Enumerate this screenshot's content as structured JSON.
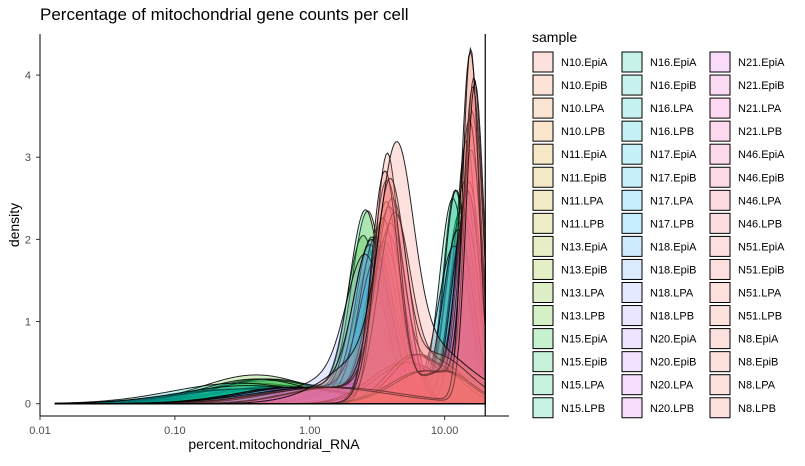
{
  "chart_data": {
    "type": "area",
    "title": "Percentage of mitochondrial gene counts per cell",
    "xlabel": "percent.mitochondrial_RNA",
    "ylabel": "density",
    "x_scale": "log10",
    "xlim": [
      0.01,
      30
    ],
    "ylim": [
      -0.15,
      4.5
    ],
    "x_ticks": [
      0.01,
      0.1,
      1,
      10
    ],
    "x_tick_labels": [
      "0.01",
      "0.10",
      "1.00",
      "10.00"
    ],
    "y_ticks": [
      0,
      1,
      2,
      3,
      4
    ],
    "y_tick_labels": [
      "0",
      "1",
      "2",
      "3",
      "4"
    ],
    "vline_x": 20,
    "legend": {
      "title": "sample",
      "placement": "right",
      "columns": 3,
      "entries": [
        {
          "name": "N10.EpiA",
          "color": "#F8766D"
        },
        {
          "name": "N10.EpiB",
          "color": "#F47D4F"
        },
        {
          "name": "N10.LPA",
          "color": "#EE8533"
        },
        {
          "name": "N10.LPB",
          "color": "#E58C1B"
        },
        {
          "name": "N11.EpiA",
          "color": "#DA9400"
        },
        {
          "name": "N11.EpiB",
          "color": "#CC9B00"
        },
        {
          "name": "N11.LPA",
          "color": "#BDA200"
        },
        {
          "name": "N11.LPB",
          "color": "#ACA800"
        },
        {
          "name": "N13.EpiA",
          "color": "#99AE00"
        },
        {
          "name": "N13.EpiB",
          "color": "#83B300"
        },
        {
          "name": "N13.LPA",
          "color": "#68B800"
        },
        {
          "name": "N13.LPB",
          "color": "#42BC00"
        },
        {
          "name": "N15.EpiA",
          "color": "#00BF26"
        },
        {
          "name": "N15.EpiB",
          "color": "#00C250"
        },
        {
          "name": "N15.LPA",
          "color": "#00C46C"
        },
        {
          "name": "N15.LPB",
          "color": "#00C585"
        },
        {
          "name": "N16.EpiA",
          "color": "#00C69B"
        },
        {
          "name": "N16.EpiB",
          "color": "#00C6AF"
        },
        {
          "name": "N16.LPA",
          "color": "#00C5C2"
        },
        {
          "name": "N16.LPB",
          "color": "#00C3D3"
        },
        {
          "name": "N17.EpiA",
          "color": "#00C0E2"
        },
        {
          "name": "N17.EpiB",
          "color": "#00BCEF"
        },
        {
          "name": "N17.LPA",
          "color": "#00B7FA"
        },
        {
          "name": "N17.LPB",
          "color": "#00B1FF"
        },
        {
          "name": "N18.EpiA",
          "color": "#26AAFF"
        },
        {
          "name": "N18.EpiB",
          "color": "#62A2FF"
        },
        {
          "name": "N18.LPA",
          "color": "#8599FF"
        },
        {
          "name": "N18.LPB",
          "color": "#A08FFF"
        },
        {
          "name": "N20.EpiA",
          "color": "#B584FF"
        },
        {
          "name": "N20.EpiB",
          "color": "#C77AFF"
        },
        {
          "name": "N20.LPA",
          "color": "#D56FFC"
        },
        {
          "name": "N20.LPB",
          "color": "#E165F2"
        },
        {
          "name": "N21.EpiA",
          "color": "#EA5DE6"
        },
        {
          "name": "N21.EpiB",
          "color": "#F156D8"
        },
        {
          "name": "N21.LPA",
          "color": "#F652C9"
        },
        {
          "name": "N21.LPB",
          "color": "#F951B8"
        },
        {
          "name": "N46.EpiA",
          "color": "#FB53A6"
        },
        {
          "name": "N46.EpiB",
          "color": "#FC5793"
        },
        {
          "name": "N46.LPA",
          "color": "#FB5D80"
        },
        {
          "name": "N46.LPB",
          "color": "#FA6476"
        },
        {
          "name": "N51.EpiA",
          "color": "#F96C72"
        },
        {
          "name": "N51.EpiB",
          "color": "#F8726E"
        },
        {
          "name": "N51.LPA",
          "color": "#F8766D"
        },
        {
          "name": "N51.LPB",
          "color": "#F8766D"
        },
        {
          "name": "N8.EpiA",
          "color": "#F8766D"
        },
        {
          "name": "N8.EpiB",
          "color": "#F8766D"
        },
        {
          "name": "N8.LPA",
          "color": "#F8766D"
        },
        {
          "name": "N8.LPB",
          "color": "#F8766D"
        }
      ]
    },
    "series": [
      {
        "name": "N10.EpiA",
        "peaks": [
          {
            "mu": 14.5,
            "sigma": 0.08,
            "h": 3.2
          },
          {
            "mu": 0.9,
            "sigma": 0.45,
            "h": 0.2
          }
        ]
      },
      {
        "name": "N10.EpiB",
        "peaks": [
          {
            "mu": 15.5,
            "sigma": 0.07,
            "h": 4.2
          },
          {
            "mu": 3.0,
            "sigma": 0.45,
            "h": 0.3
          }
        ]
      },
      {
        "name": "N10.LPA",
        "peaks": [
          {
            "mu": 3.7,
            "sigma": 0.1,
            "h": 2.4
          },
          {
            "mu": 0.8,
            "sigma": 0.5,
            "h": 0.15
          }
        ]
      },
      {
        "name": "N10.LPB",
        "peaks": [
          {
            "mu": 3.5,
            "sigma": 0.11,
            "h": 2.2
          },
          {
            "mu": 0.6,
            "sigma": 0.5,
            "h": 0.2
          }
        ]
      },
      {
        "name": "N11.EpiA",
        "peaks": [
          {
            "mu": 13.0,
            "sigma": 0.1,
            "h": 2.3
          },
          {
            "mu": 2.0,
            "sigma": 0.4,
            "h": 0.25
          }
        ]
      },
      {
        "name": "N11.EpiB",
        "peaks": [
          {
            "mu": 14.0,
            "sigma": 0.09,
            "h": 2.7
          },
          {
            "mu": 0.5,
            "sigma": 0.5,
            "h": 0.2
          }
        ]
      },
      {
        "name": "N11.LPA",
        "peaks": [
          {
            "mu": 3.4,
            "sigma": 0.12,
            "h": 1.9
          },
          {
            "mu": 0.4,
            "sigma": 0.45,
            "h": 0.25
          }
        ]
      },
      {
        "name": "N11.LPB",
        "peaks": [
          {
            "mu": 3.0,
            "sigma": 0.13,
            "h": 1.8
          },
          {
            "mu": 0.5,
            "sigma": 0.45,
            "h": 0.28
          }
        ]
      },
      {
        "name": "N13.EpiA",
        "peaks": [
          {
            "mu": 12.5,
            "sigma": 0.1,
            "h": 2.1
          },
          {
            "mu": 0.6,
            "sigma": 0.45,
            "h": 0.22
          }
        ]
      },
      {
        "name": "N13.EpiB",
        "peaks": [
          {
            "mu": 13.5,
            "sigma": 0.09,
            "h": 2.4
          },
          {
            "mu": 0.7,
            "sigma": 0.45,
            "h": 0.2
          }
        ]
      },
      {
        "name": "N13.LPA",
        "peaks": [
          {
            "mu": 2.7,
            "sigma": 0.12,
            "h": 2.3
          },
          {
            "mu": 0.45,
            "sigma": 0.4,
            "h": 0.3
          }
        ]
      },
      {
        "name": "N13.LPB",
        "peaks": [
          {
            "mu": 2.5,
            "sigma": 0.12,
            "h": 2.0
          },
          {
            "mu": 0.4,
            "sigma": 0.4,
            "h": 0.35
          }
        ]
      },
      {
        "name": "N15.EpiA",
        "peaks": [
          {
            "mu": 12.0,
            "sigma": 0.09,
            "h": 2.6
          },
          {
            "mu": 0.5,
            "sigma": 0.45,
            "h": 0.2
          }
        ]
      },
      {
        "name": "N15.EpiB",
        "peaks": [
          {
            "mu": 12.8,
            "sigma": 0.1,
            "h": 2.2
          },
          {
            "mu": 0.6,
            "sigma": 0.45,
            "h": 0.2
          }
        ]
      },
      {
        "name": "N15.LPA",
        "peaks": [
          {
            "mu": 2.6,
            "sigma": 0.12,
            "h": 2.3
          },
          {
            "mu": 0.5,
            "sigma": 0.4,
            "h": 0.3
          }
        ]
      },
      {
        "name": "N15.LPB",
        "peaks": [
          {
            "mu": 2.9,
            "sigma": 0.12,
            "h": 2.0
          },
          {
            "mu": 0.4,
            "sigma": 0.4,
            "h": 0.3
          }
        ]
      },
      {
        "name": "N16.EpiA",
        "peaks": [
          {
            "mu": 11.5,
            "sigma": 0.1,
            "h": 2.5
          },
          {
            "mu": 0.3,
            "sigma": 0.5,
            "h": 0.18
          }
        ]
      },
      {
        "name": "N16.EpiB",
        "peaks": [
          {
            "mu": 12.2,
            "sigma": 0.09,
            "h": 2.6
          },
          {
            "mu": 0.35,
            "sigma": 0.5,
            "h": 0.18
          }
        ]
      },
      {
        "name": "N16.LPA",
        "peaks": [
          {
            "mu": 2.8,
            "sigma": 0.13,
            "h": 1.9
          },
          {
            "mu": 0.3,
            "sigma": 0.5,
            "h": 0.25
          }
        ]
      },
      {
        "name": "N16.LPB",
        "peaks": [
          {
            "mu": 3.1,
            "sigma": 0.12,
            "h": 2.0
          },
          {
            "mu": 0.35,
            "sigma": 0.5,
            "h": 0.22
          }
        ]
      },
      {
        "name": "N17.EpiA",
        "peaks": [
          {
            "mu": 13.8,
            "sigma": 0.1,
            "h": 2.2
          },
          {
            "mu": 0.8,
            "sigma": 0.45,
            "h": 0.2
          }
        ]
      },
      {
        "name": "N17.EpiB",
        "peaks": [
          {
            "mu": 14.8,
            "sigma": 0.09,
            "h": 2.6
          },
          {
            "mu": 0.9,
            "sigma": 0.45,
            "h": 0.2
          }
        ]
      },
      {
        "name": "N17.LPA",
        "peaks": [
          {
            "mu": 3.2,
            "sigma": 0.13,
            "h": 1.7
          },
          {
            "mu": 1.2,
            "sigma": 0.4,
            "h": 0.2
          }
        ]
      },
      {
        "name": "N17.LPB",
        "peaks": [
          {
            "mu": 3.6,
            "sigma": 0.12,
            "h": 1.9
          },
          {
            "mu": 1.0,
            "sigma": 0.4,
            "h": 0.2
          }
        ]
      },
      {
        "name": "N18.EpiA",
        "peaks": [
          {
            "mu": 11.8,
            "sigma": 0.12,
            "h": 1.9
          },
          {
            "mu": 2.5,
            "sigma": 0.3,
            "h": 0.25
          }
        ]
      },
      {
        "name": "N18.EpiB",
        "peaks": [
          {
            "mu": 12.6,
            "sigma": 0.11,
            "h": 2.1
          },
          {
            "mu": 2.8,
            "sigma": 0.3,
            "h": 0.22
          }
        ]
      },
      {
        "name": "N18.LPA",
        "peaks": [
          {
            "mu": 2.6,
            "sigma": 0.14,
            "h": 1.6
          },
          {
            "mu": 1.5,
            "sigma": 0.3,
            "h": 0.3
          }
        ]
      },
      {
        "name": "N18.LPB",
        "peaks": [
          {
            "mu": 2.9,
            "sigma": 0.13,
            "h": 1.8
          },
          {
            "mu": 1.8,
            "sigma": 0.3,
            "h": 0.25
          }
        ]
      },
      {
        "name": "N20.EpiA",
        "peaks": [
          {
            "mu": 14.2,
            "sigma": 0.1,
            "h": 2.3
          },
          {
            "mu": 0.7,
            "sigma": 0.4,
            "h": 0.2
          }
        ]
      },
      {
        "name": "N20.EpiB",
        "peaks": [
          {
            "mu": 15.2,
            "sigma": 0.09,
            "h": 2.7
          },
          {
            "mu": 0.8,
            "sigma": 0.4,
            "h": 0.2
          }
        ]
      },
      {
        "name": "N20.LPA",
        "peaks": [
          {
            "mu": 3.8,
            "sigma": 0.12,
            "h": 2.0
          },
          {
            "mu": 1.1,
            "sigma": 0.4,
            "h": 0.2
          }
        ]
      },
      {
        "name": "N20.LPB",
        "peaks": [
          {
            "mu": 4.0,
            "sigma": 0.12,
            "h": 2.1
          },
          {
            "mu": 1.3,
            "sigma": 0.4,
            "h": 0.2
          }
        ]
      },
      {
        "name": "N21.EpiA",
        "peaks": [
          {
            "mu": 15.0,
            "sigma": 0.09,
            "h": 2.5
          },
          {
            "mu": 5.0,
            "sigma": 0.25,
            "h": 0.5
          }
        ]
      },
      {
        "name": "N21.EpiB",
        "peaks": [
          {
            "mu": 15.8,
            "sigma": 0.08,
            "h": 3.0
          },
          {
            "mu": 5.5,
            "sigma": 0.25,
            "h": 0.5
          }
        ]
      },
      {
        "name": "N21.LPA",
        "peaks": [
          {
            "mu": 3.9,
            "sigma": 0.12,
            "h": 2.3
          },
          {
            "mu": 1.5,
            "sigma": 0.35,
            "h": 0.2
          }
        ]
      },
      {
        "name": "N21.LPB",
        "peaks": [
          {
            "mu": 4.1,
            "sigma": 0.12,
            "h": 2.4
          },
          {
            "mu": 1.6,
            "sigma": 0.35,
            "h": 0.2
          }
        ]
      },
      {
        "name": "N46.EpiA",
        "peaks": [
          {
            "mu": 16.0,
            "sigma": 0.07,
            "h": 3.5
          },
          {
            "mu": 6.0,
            "sigma": 0.2,
            "h": 0.6
          }
        ]
      },
      {
        "name": "N46.EpiB",
        "peaks": [
          {
            "mu": 16.5,
            "sigma": 0.065,
            "h": 3.9
          },
          {
            "mu": 6.5,
            "sigma": 0.2,
            "h": 0.6
          }
        ]
      },
      {
        "name": "N46.LPA",
        "peaks": [
          {
            "mu": 3.7,
            "sigma": 0.11,
            "h": 2.6
          },
          {
            "mu": 8.0,
            "sigma": 0.2,
            "h": 0.5
          }
        ]
      },
      {
        "name": "N46.LPB",
        "peaks": [
          {
            "mu": 4.2,
            "sigma": 0.12,
            "h": 2.2
          },
          {
            "mu": 9.0,
            "sigma": 0.2,
            "h": 0.5
          }
        ]
      },
      {
        "name": "N51.EpiA",
        "peaks": [
          {
            "mu": 15.3,
            "sigma": 0.08,
            "h": 3.3
          },
          {
            "mu": 7.0,
            "sigma": 0.25,
            "h": 0.4
          }
        ]
      },
      {
        "name": "N51.EpiB",
        "peaks": [
          {
            "mu": 16.2,
            "sigma": 0.07,
            "h": 3.7
          },
          {
            "mu": 7.5,
            "sigma": 0.25,
            "h": 0.4
          }
        ]
      },
      {
        "name": "N51.LPA",
        "peaks": [
          {
            "mu": 3.75,
            "sigma": 0.09,
            "h": 3.0
          },
          {
            "mu": 9.5,
            "sigma": 0.2,
            "h": 0.4
          }
        ]
      },
      {
        "name": "N51.LPB",
        "peaks": [
          {
            "mu": 3.6,
            "sigma": 0.1,
            "h": 2.8
          },
          {
            "mu": 10.0,
            "sigma": 0.2,
            "h": 0.4
          }
        ]
      },
      {
        "name": "N8.EpiA",
        "peaks": [
          {
            "mu": 15.6,
            "sigma": 0.06,
            "h": 4.3
          },
          {
            "mu": 1.5,
            "sigma": 0.5,
            "h": 0.2
          }
        ]
      },
      {
        "name": "N8.EpiB",
        "peaks": [
          {
            "mu": 16.8,
            "sigma": 0.065,
            "h": 3.9
          },
          {
            "mu": 1.2,
            "sigma": 0.5,
            "h": 0.2
          }
        ]
      },
      {
        "name": "N8.LPA",
        "peaks": [
          {
            "mu": 3.9,
            "sigma": 0.11,
            "h": 2.5
          },
          {
            "mu": 8.5,
            "sigma": 0.25,
            "h": 0.6
          }
        ]
      },
      {
        "name": "N8.LPB",
        "peaks": [
          {
            "mu": 4.4,
            "sigma": 0.12,
            "h": 2.3
          },
          {
            "mu": 5.0,
            "sigma": 0.4,
            "h": 0.9
          }
        ]
      }
    ]
  }
}
